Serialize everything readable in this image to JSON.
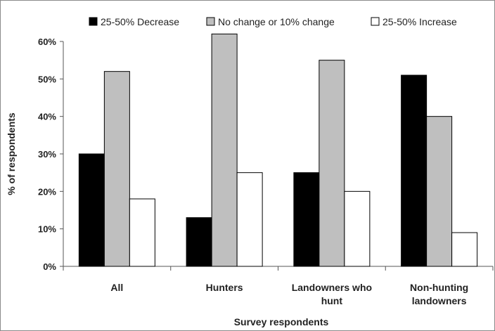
{
  "chart_data": {
    "type": "bar",
    "categories": [
      "All",
      "Hunters",
      "Landowners who hunt",
      "Non-hunting landowners"
    ],
    "category_lines": [
      [
        "All"
      ],
      [
        "Hunters"
      ],
      [
        "Landowners who",
        "hunt"
      ],
      [
        "Non-hunting",
        "landowners"
      ]
    ],
    "series": [
      {
        "name": "25-50% Decrease",
        "values": [
          30,
          13,
          25,
          51
        ],
        "color": "#000000"
      },
      {
        "name": "No change or 10% change",
        "values": [
          52,
          62,
          55,
          40
        ],
        "color": "#bfbfbf"
      },
      {
        "name": "25-50% Increase",
        "values": [
          18,
          25,
          20,
          9
        ],
        "color": "#ffffff"
      }
    ],
    "xlabel": "Survey respondents",
    "ylabel": "% of respondents",
    "ylim": [
      0,
      60
    ],
    "y_ticks": [
      "0%",
      "10%",
      "20%",
      "30%",
      "40%",
      "50%",
      "60%"
    ],
    "grid": false,
    "legend_position": "top"
  }
}
